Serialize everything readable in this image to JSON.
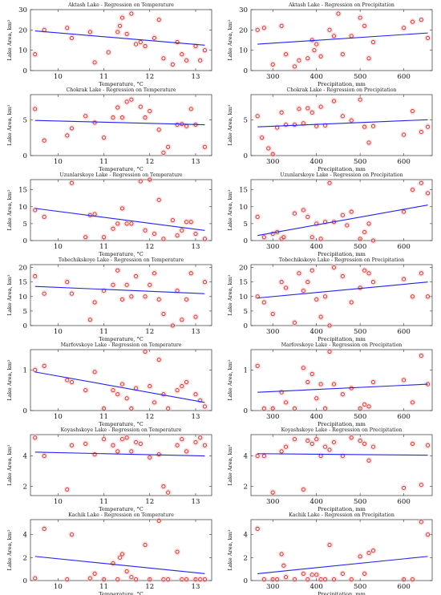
{
  "chart_data": [
    {
      "type": "scatter",
      "title": "Aktash Lake - Regression on Temperature",
      "xlabel": "Temperature, °C",
      "ylabel": "Lake Area, km²",
      "xlim": [
        9.4,
        13.35
      ],
      "ylim": [
        0,
        30
      ],
      "xticks": [
        10,
        11,
        12,
        13
      ],
      "yticks": [
        0,
        10,
        20,
        30
      ],
      "x": [
        9.5,
        9.7,
        10.2,
        10.3,
        10.7,
        10.8,
        11.1,
        11.3,
        11.35,
        11.4,
        11.5,
        11.6,
        11.7,
        11.8,
        11.9,
        12.1,
        12.2,
        12.3,
        12.5,
        12.6,
        12.7,
        12.8,
        13.0,
        13.1,
        13.2
      ],
      "y": [
        8,
        20,
        21,
        16,
        19,
        4,
        9,
        19,
        22,
        26,
        18,
        28,
        13,
        14,
        12,
        16,
        25,
        6,
        3,
        14,
        8,
        5,
        12,
        5,
        10
      ],
      "regression": {
        "x": [
          9.5,
          13.2
        ],
        "y": [
          19.5,
          12.5
        ]
      }
    },
    {
      "type": "scatter",
      "title": "Aktash Lake - Regression on Precipitation",
      "xlabel": "Precipitation, mm",
      "ylabel": "Lake Area, km²",
      "xlim": [
        250,
        665
      ],
      "ylim": [
        0,
        30
      ],
      "xticks": [
        300,
        400,
        500,
        600
      ],
      "yticks": [
        0,
        10,
        20,
        30
      ],
      "x": [
        265,
        280,
        300,
        320,
        330,
        350,
        360,
        380,
        390,
        395,
        400,
        410,
        430,
        440,
        450,
        460,
        480,
        500,
        510,
        520,
        530,
        600,
        620,
        640,
        655
      ],
      "y": [
        20,
        21,
        3,
        22,
        8,
        2,
        5,
        6,
        15,
        10,
        13,
        7,
        20,
        17,
        28,
        8,
        17,
        26,
        22,
        6,
        14,
        21,
        24,
        25,
        16
      ],
      "regression": {
        "x": [
          265,
          655
        ],
        "y": [
          13.0,
          18.5
        ]
      }
    },
    {
      "type": "scatter",
      "title": "Chokrak Lake - Regression on Temperature",
      "xlabel": "Temperature, °C",
      "ylabel": "Lake Area, km²",
      "xlim": [
        9.4,
        13.35
      ],
      "ylim": [
        0,
        8.5
      ],
      "xticks": [
        10,
        11,
        12,
        13
      ],
      "yticks": [
        0,
        5
      ],
      "x": [
        9.5,
        9.7,
        10.2,
        10.3,
        10.6,
        10.8,
        11.0,
        11.2,
        11.3,
        11.4,
        11.5,
        11.6,
        11.8,
        11.9,
        12.0,
        12.2,
        12.3,
        12.4,
        12.6,
        12.7,
        12.8,
        12.9,
        13.0,
        13.2
      ],
      "y": [
        6.5,
        2.1,
        2.8,
        3.8,
        5.5,
        4.6,
        2.5,
        5.3,
        6.7,
        5.3,
        7.5,
        7.8,
        6.8,
        5.3,
        6.2,
        3.6,
        0.4,
        1.2,
        4.3,
        4.4,
        4.1,
        6.5,
        4.3,
        1.2
      ],
      "regression": {
        "x": [
          9.5,
          13.2
        ],
        "y": [
          4.9,
          4.3
        ]
      }
    },
    {
      "type": "scatter",
      "title": "Chokrak Lake - Regression on Precipitation",
      "xlabel": "Precipitation, mm",
      "ylabel": "Lake Area, km²",
      "xlim": [
        250,
        665
      ],
      "ylim": [
        0,
        8.5
      ],
      "xticks": [
        300,
        400,
        500,
        600
      ],
      "yticks": [
        0,
        5
      ],
      "x": [
        265,
        275,
        290,
        300,
        310,
        320,
        330,
        350,
        360,
        370,
        380,
        390,
        400,
        410,
        420,
        440,
        460,
        480,
        500,
        510,
        520,
        530,
        600,
        620,
        640,
        655
      ],
      "y": [
        5.5,
        2.5,
        1.0,
        0.2,
        3.9,
        6.0,
        4.3,
        4.3,
        6.5,
        4.5,
        6.6,
        6.0,
        4.1,
        6.8,
        4.2,
        7.6,
        5.5,
        4.9,
        7.8,
        4.0,
        1.8,
        4.1,
        2.9,
        6.2,
        3.3,
        4.0
      ],
      "regression": {
        "x": [
          265,
          655
        ],
        "y": [
          4.0,
          5.0
        ]
      }
    },
    {
      "type": "scatter",
      "title": "Uzunlarskoye Lake - Regression on Temperature",
      "xlabel": "Temperature, °C",
      "ylabel": "Lake Area, km²",
      "xlim": [
        9.4,
        13.35
      ],
      "ylim": [
        0,
        18
      ],
      "xticks": [
        10,
        11,
        12,
        13
      ],
      "yticks": [
        0,
        5,
        10,
        15
      ],
      "x": [
        9.5,
        9.7,
        10.3,
        10.6,
        10.7,
        10.8,
        11.0,
        11.2,
        11.3,
        11.4,
        11.5,
        11.6,
        11.8,
        11.9,
        12.0,
        12.1,
        12.2,
        12.3,
        12.5,
        12.6,
        12.7,
        12.8,
        12.9,
        13.0,
        13.2
      ],
      "y": [
        9,
        7,
        17,
        1,
        7.5,
        7.8,
        1,
        3.5,
        5,
        9.5,
        5,
        5,
        17.5,
        3,
        18,
        2,
        12,
        0.5,
        6,
        1.5,
        3,
        5.5,
        5.5,
        2,
        0.5
      ],
      "regression": {
        "x": [
          9.5,
          13.2
        ],
        "y": [
          9.5,
          3.0
        ]
      }
    },
    {
      "type": "scatter",
      "title": "Uzunlarskoye Lake - Regression on Precipitation",
      "xlabel": "Precipitation, mm",
      "ylabel": "Lake Area, km²",
      "xlim": [
        250,
        665
      ],
      "ylim": [
        0,
        18
      ],
      "xticks": [
        300,
        400,
        500,
        600
      ],
      "yticks": [
        0,
        5,
        10,
        15
      ],
      "x": [
        265,
        280,
        300,
        310,
        320,
        325,
        350,
        370,
        380,
        390,
        400,
        410,
        420,
        430,
        440,
        460,
        470,
        480,
        500,
        510,
        520,
        530,
        600,
        620,
        640,
        655
      ],
      "y": [
        7,
        1,
        2,
        2.5,
        0.5,
        1,
        8,
        9,
        7,
        1,
        5,
        0.5,
        5.5,
        17,
        5.5,
        7.5,
        4.5,
        8.5,
        0.5,
        2.5,
        5,
        0,
        8.5,
        15,
        17,
        14
      ],
      "regression": {
        "x": [
          265,
          655
        ],
        "y": [
          1.5,
          10.5
        ]
      }
    },
    {
      "type": "scatter",
      "title": "Tobechikskoye Lake - Regression on Temperature",
      "xlabel": "Temperature, °C",
      "ylabel": "Lake Area, km²",
      "xlim": [
        9.4,
        13.35
      ],
      "ylim": [
        0,
        21
      ],
      "xticks": [
        10,
        11,
        12,
        13
      ],
      "yticks": [
        0,
        5,
        10,
        15,
        20
      ],
      "x": [
        9.5,
        9.7,
        10.2,
        10.3,
        10.7,
        10.8,
        11.0,
        11.2,
        11.3,
        11.4,
        11.5,
        11.6,
        11.7,
        11.9,
        12.0,
        12.1,
        12.2,
        12.3,
        12.5,
        12.6,
        12.7,
        12.8,
        12.9,
        13.0,
        13.2
      ],
      "y": [
        17,
        11,
        15,
        11,
        2,
        8,
        12,
        14,
        19,
        9,
        14,
        10,
        17,
        10,
        14,
        18,
        9,
        4,
        0,
        12,
        2,
        9,
        18,
        3,
        15
      ],
      "regression": {
        "x": [
          9.5,
          13.2
        ],
        "y": [
          13.5,
          11.0
        ]
      }
    },
    {
      "type": "scatter",
      "title": "Tobechikskoye Lake - Regression on Precipitation",
      "xlabel": "Precipitation, mm",
      "ylabel": "Lake Area, km²",
      "xlim": [
        250,
        665
      ],
      "ylim": [
        0,
        21
      ],
      "xticks": [
        300,
        400,
        500,
        600
      ],
      "yticks": [
        0,
        5,
        10,
        15,
        20
      ],
      "x": [
        265,
        280,
        300,
        320,
        330,
        350,
        360,
        370,
        380,
        390,
        400,
        410,
        420,
        430,
        440,
        460,
        480,
        500,
        510,
        520,
        530,
        600,
        620,
        640,
        655
      ],
      "y": [
        10,
        8,
        4,
        15,
        13,
        1,
        18,
        12,
        15,
        19,
        9,
        3,
        10,
        0,
        20,
        17,
        8,
        13,
        19,
        18,
        15,
        16,
        10,
        18,
        10
      ],
      "regression": {
        "x": [
          265,
          655
        ],
        "y": [
          9.5,
          15.0
        ]
      }
    },
    {
      "type": "scatter",
      "title": "Marfovskoye Lake - Regression on Temperature",
      "xlabel": "Temperature, °C",
      "ylabel": "Lake Area, km²",
      "xlim": [
        9.4,
        13.35
      ],
      "ylim": [
        0,
        1.5
      ],
      "xticks": [
        10,
        11,
        12,
        13
      ],
      "yticks": [
        0,
        1
      ],
      "x": [
        9.5,
        9.7,
        10.2,
        10.3,
        10.6,
        10.8,
        11.0,
        11.2,
        11.3,
        11.4,
        11.5,
        11.6,
        11.7,
        11.9,
        12.0,
        12.1,
        12.2,
        12.3,
        12.4,
        12.6,
        12.7,
        12.8,
        13.0,
        13.1,
        13.2
      ],
      "y": [
        1.0,
        1.1,
        0.75,
        0.7,
        0.5,
        0.95,
        0.05,
        0.5,
        0.4,
        0.65,
        0.3,
        0.05,
        0.55,
        1.45,
        0.6,
        0.2,
        1.25,
        0.4,
        0.05,
        0.5,
        0.6,
        0.7,
        0.4,
        0.25,
        0.1
      ],
      "regression": {
        "x": [
          9.5,
          13.2
        ],
        "y": [
          0.95,
          0.2
        ]
      }
    },
    {
      "type": "scatter",
      "title": "Marfovskoye Lake - Regression on Precipitation",
      "xlabel": "Precipitation, mm",
      "ylabel": "Lake Area, km²",
      "xlim": [
        250,
        665
      ],
      "ylim": [
        0,
        1.5
      ],
      "xticks": [
        300,
        400,
        500,
        600
      ],
      "yticks": [
        0,
        1
      ],
      "x": [
        265,
        280,
        300,
        320,
        330,
        350,
        370,
        380,
        390,
        400,
        410,
        420,
        430,
        440,
        460,
        480,
        500,
        510,
        520,
        530,
        600,
        620,
        640,
        655
      ],
      "y": [
        1.1,
        0.05,
        0.05,
        0.45,
        0.2,
        0.05,
        1.05,
        0.7,
        0.9,
        0.3,
        0.65,
        0.05,
        1.45,
        0.65,
        0.4,
        0.55,
        0.05,
        0.15,
        0.1,
        0.7,
        0.75,
        0.2,
        1.35,
        0.65
      ],
      "regression": {
        "x": [
          265,
          655
        ],
        "y": [
          0.45,
          0.65
        ]
      }
    },
    {
      "type": "scatter",
      "title": "Koyashskoye Lake - Regression on Temperature",
      "xlabel": "Temperature, °C",
      "ylabel": "Lake Area, km²",
      "xlim": [
        9.4,
        13.35
      ],
      "ylim": [
        1.4,
        5.4
      ],
      "xticks": [
        10,
        11,
        12,
        13
      ],
      "yticks": [
        2,
        4
      ],
      "x": [
        9.5,
        9.7,
        10.2,
        10.3,
        10.6,
        10.8,
        11.0,
        11.2,
        11.3,
        11.4,
        11.5,
        11.6,
        11.7,
        11.8,
        12.0,
        12.2,
        12.3,
        12.4,
        12.6,
        12.7,
        12.8,
        13.0,
        13.1,
        13.2
      ],
      "y": [
        5.2,
        4.0,
        1.8,
        4.7,
        4.8,
        4.1,
        5.1,
        4.7,
        4.3,
        5.1,
        5.2,
        4.3,
        4.9,
        4.8,
        3.9,
        4.1,
        2.0,
        1.6,
        4.7,
        5.1,
        4.3,
        4.9,
        5.2,
        4.7
      ],
      "regression": {
        "x": [
          9.5,
          13.2
        ],
        "y": [
          4.25,
          4.0
        ]
      }
    },
    {
      "type": "scatter",
      "title": "Koyashskoye Lake - Regression on Precipitation",
      "xlabel": "Precipitation, mm",
      "ylabel": "Lake Area, km²",
      "xlim": [
        250,
        665
      ],
      "ylim": [
        1.4,
        5.4
      ],
      "xticks": [
        300,
        400,
        500,
        600
      ],
      "yticks": [
        2,
        4
      ],
      "x": [
        265,
        280,
        300,
        320,
        330,
        350,
        370,
        380,
        390,
        400,
        410,
        420,
        430,
        440,
        460,
        480,
        500,
        510,
        520,
        530,
        600,
        620,
        640,
        655
      ],
      "y": [
        4.0,
        4.0,
        1.6,
        4.3,
        4.6,
        5.1,
        1.8,
        5.0,
        4.8,
        5.1,
        4.0,
        4.6,
        4.4,
        4.9,
        4.0,
        5.2,
        5.0,
        4.8,
        3.7,
        4.6,
        1.9,
        4.8,
        2.1,
        4.7
      ],
      "regression": {
        "x": [
          265,
          655
        ],
        "y": [
          4.15,
          4.05
        ]
      }
    },
    {
      "type": "scatter",
      "title": "Kachik Lake - Regression on Temperature",
      "xlabel": "Temperature, °C",
      "ylabel": "Lake Area, km²",
      "xlim": [
        9.4,
        13.35
      ],
      "ylim": [
        0,
        5.3
      ],
      "xticks": [
        10,
        11,
        12,
        13
      ],
      "yticks": [
        0,
        2,
        4
      ],
      "x": [
        9.5,
        9.7,
        10.2,
        10.3,
        10.7,
        10.8,
        11.0,
        11.2,
        11.3,
        11.35,
        11.4,
        11.5,
        11.6,
        11.7,
        11.9,
        12.0,
        12.2,
        12.3,
        12.4,
        12.6,
        12.7,
        12.8,
        13.0,
        13.1,
        13.2
      ],
      "y": [
        0.2,
        4.5,
        0.1,
        4.0,
        0.2,
        0.6,
        0.1,
        1.5,
        0.1,
        2.0,
        2.3,
        0.8,
        0.3,
        0.1,
        3.1,
        0.1,
        5.2,
        0.1,
        0.1,
        2.5,
        0.1,
        0.1,
        0.1,
        0.1,
        0.1
      ],
      "regression": {
        "x": [
          9.5,
          13.2
        ],
        "y": [
          2.1,
          0.6
        ]
      }
    },
    {
      "type": "scatter",
      "title": "Kachik Lake - Regression on Precipitation",
      "xlabel": "Precipitation, mm",
      "ylabel": "Lake Area, km²",
      "xlim": [
        250,
        665
      ],
      "ylim": [
        0,
        5.3
      ],
      "xticks": [
        300,
        400,
        500,
        600
      ],
      "yticks": [
        0,
        2,
        4
      ],
      "x": [
        265,
        280,
        300,
        310,
        320,
        325,
        330,
        350,
        370,
        380,
        390,
        400,
        410,
        420,
        430,
        440,
        460,
        480,
        500,
        510,
        520,
        530,
        600,
        620,
        640,
        655
      ],
      "y": [
        4.5,
        0.1,
        0.1,
        0.1,
        2.3,
        1.3,
        0.3,
        0.1,
        0.6,
        0.1,
        0.5,
        0.5,
        0.1,
        0.1,
        3.1,
        0.1,
        0.6,
        0.1,
        2.1,
        0.6,
        2.4,
        2.6,
        0.1,
        0.1,
        5.1,
        4.0
      ],
      "regression": {
        "x": [
          265,
          655
        ],
        "y": [
          0.6,
          2.1
        ]
      }
    }
  ]
}
